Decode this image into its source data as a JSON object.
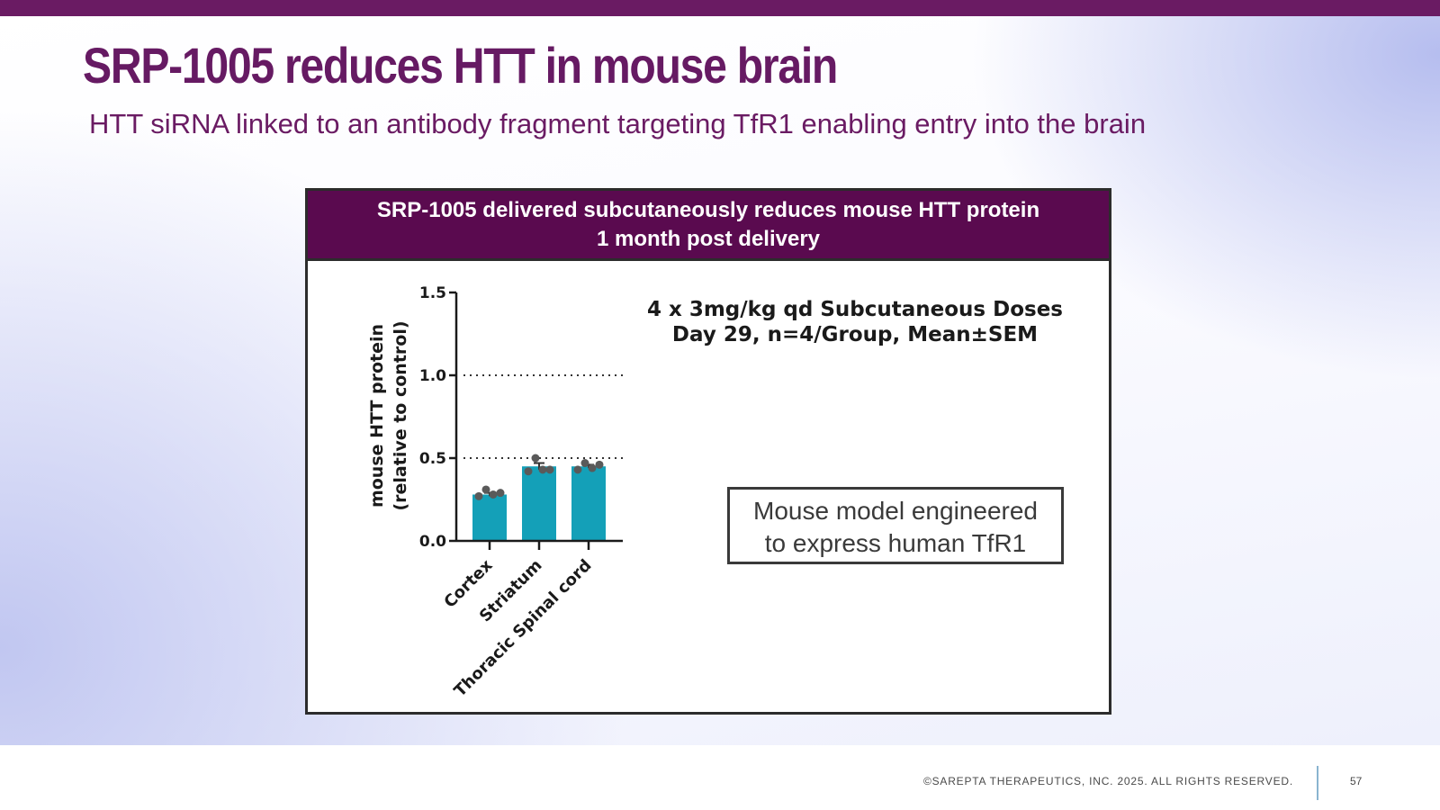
{
  "slide": {
    "title": "SRP-1005 reduces HTT in mouse brain",
    "subtitle": "HTT siRNA linked to an antibody fragment targeting TfR1 enabling entry into the brain",
    "accent_color": "#6a1b63"
  },
  "panel": {
    "header_line1": "SRP-1005 delivered subcutaneously reduces mouse HTT protein",
    "header_line2": "1 month post delivery",
    "dose_line1": "4 x 3mg/kg qd Subcutaneous Doses",
    "dose_line2": "Day 29, n=4/Group, Mean±SEM",
    "model_line1": "Mouse model engineered",
    "model_line2": "to express human TfR1"
  },
  "chart_data": {
    "type": "bar",
    "ylabel_line1": "mouse HTT protein",
    "ylabel_line2": "(relative to control)",
    "ylim": [
      0,
      1.5
    ],
    "yticks": [
      "0.0",
      "0.5",
      "1.0",
      "1.5"
    ],
    "reference_lines": [
      1.0,
      0.5
    ],
    "categories": [
      "Cortex",
      "Striatum",
      "Thoracic Spinal cord"
    ],
    "values": [
      0.28,
      0.45,
      0.45
    ],
    "sem": [
      0.01,
      0.02,
      0.01
    ],
    "points": [
      [
        0.27,
        0.31,
        0.28,
        0.29
      ],
      [
        0.42,
        0.5,
        0.43,
        0.43
      ],
      [
        0.43,
        0.47,
        0.44,
        0.46
      ]
    ],
    "bar_color": "#14a0b8",
    "point_color": "#5a5a5a"
  },
  "footer": {
    "copyright": "©SAREPTA THERAPEUTICS, INC. 2025.  ALL RIGHTS RESERVED.",
    "page_number": "57"
  }
}
